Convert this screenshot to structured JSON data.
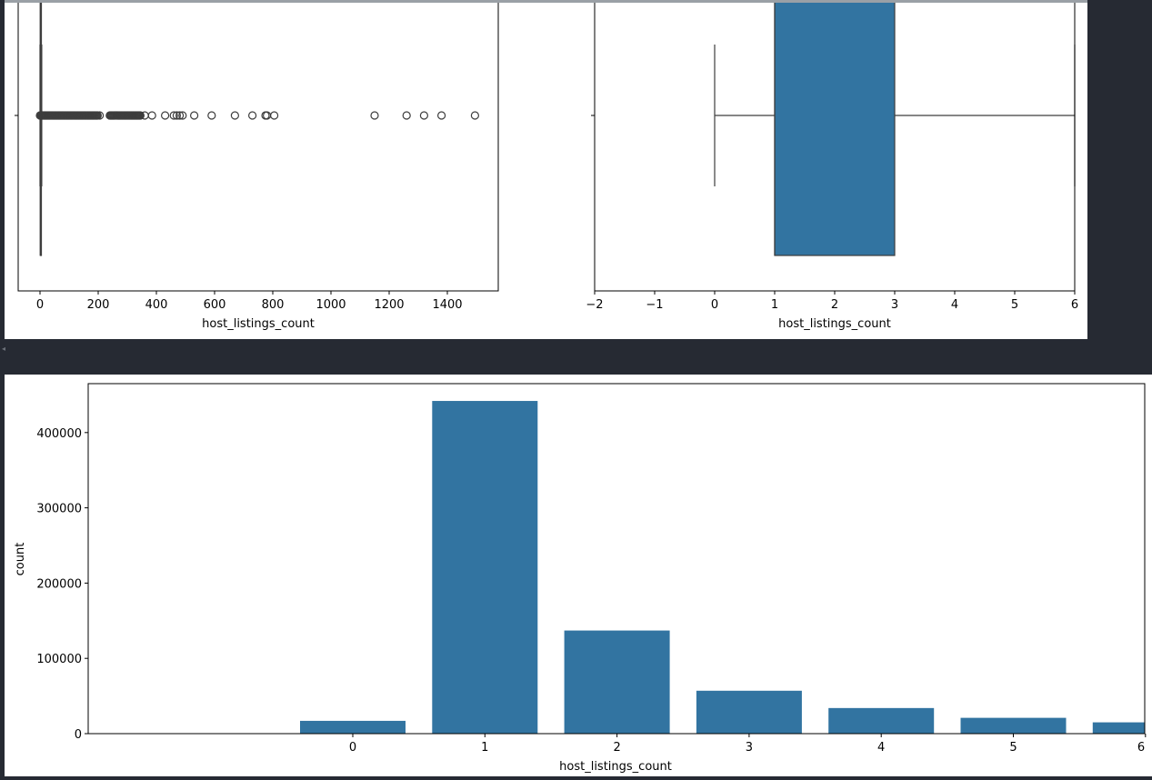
{
  "chart_data": [
    {
      "type": "box",
      "xlabel": "host_listings_count",
      "xlim": [
        -75,
        1575
      ],
      "x_ticks": [
        0,
        200,
        400,
        600,
        800,
        1000,
        1200,
        1400
      ],
      "x_tick_labels": [
        "0",
        "200",
        "400",
        "600",
        "800",
        "1000",
        "1200",
        "1400"
      ],
      "box": {
        "q1": 1,
        "median": 1,
        "q3": 3,
        "whisker_low": 0,
        "whisker_high": 6
      },
      "outlier_ranges": [
        [
          0,
          200
        ],
        [
          240,
          345
        ]
      ],
      "outliers": [
        205,
        360,
        385,
        430,
        460,
        470,
        480,
        490,
        530,
        590,
        670,
        730,
        775,
        780,
        805,
        1150,
        1260,
        1320,
        1380,
        1495
      ],
      "box_color": "#3274a1"
    },
    {
      "type": "box",
      "xlabel": "host_listings_count",
      "xlim": [
        -2,
        6
      ],
      "x_ticks": [
        -2,
        -1,
        0,
        1,
        2,
        3,
        4,
        5,
        6
      ],
      "x_tick_labels": [
        "−2",
        "−1",
        "0",
        "1",
        "2",
        "3",
        "4",
        "5",
        "6"
      ],
      "box": {
        "q1": 1,
        "median": 1,
        "q3": 3,
        "whisker_low": 0,
        "whisker_high": 6
      },
      "box_color": "#3274a1"
    },
    {
      "type": "bar",
      "xlabel": "host_listings_count",
      "ylabel": "count",
      "categories": [
        "0",
        "1",
        "2",
        "3",
        "4",
        "5",
        "6"
      ],
      "values": [
        17000,
        442000,
        137000,
        57000,
        34000,
        21000,
        15000
      ],
      "ylim": [
        0,
        465000
      ],
      "y_ticks": [
        0,
        100000,
        200000,
        300000,
        400000
      ],
      "y_tick_labels": [
        "0",
        "100000",
        "200000",
        "300000",
        "400000"
      ],
      "bar_color": "#3274a1"
    }
  ]
}
